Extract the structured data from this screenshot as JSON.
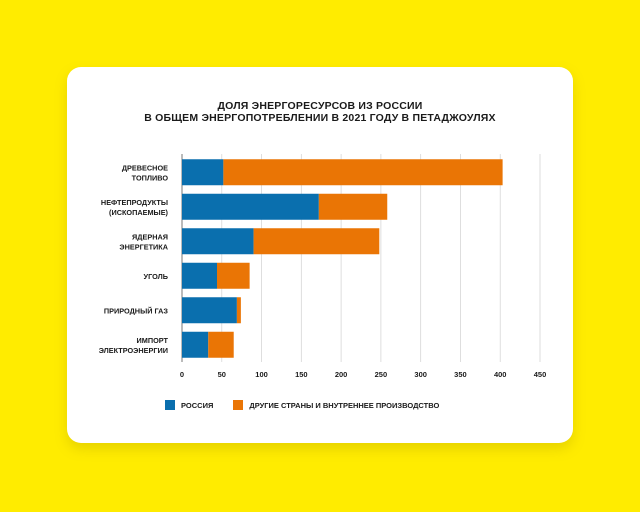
{
  "title_lines": [
    "ДОЛЯ ЭНЕРГОРЕСУРСОВ ИЗ РОССИИ",
    "В ОБЩЕМ ЭНЕРГОПОТРЕБЛЕНИИ В 2021 ГОДУ В ПЕТАДЖОУЛЯХ"
  ],
  "legend": {
    "russia_label": "РОССИЯ",
    "other_label": "ДРУГИЕ СТРАНЫ И ВНУТРЕННЕЕ ПРОИЗВОДСТВО"
  },
  "colors": {
    "russia": "#0A6FAE",
    "other": "#EA7505",
    "background": "#FFEC00",
    "grid": "#d6d6d6"
  },
  "chart_data": {
    "type": "bar",
    "orientation": "horizontal",
    "stacked": true,
    "title": "ДОЛЯ ЭНЕРГОРЕСУРСОВ ИЗ РОССИИ В ОБЩЕМ ЭНЕРГОПОТРЕБЛЕНИИ В 2021 ГОДУ В ПЕТАДЖОУЛЯХ",
    "categories": [
      [
        "ДРЕВЕСНОЕ",
        "ТОПЛИВО"
      ],
      [
        "НЕФТЕПРОДУКТЫ",
        "(ИСКОПАЕМЫЕ)"
      ],
      [
        "ЯДЕРНАЯ",
        "ЭНЕРГЕТИКА"
      ],
      [
        "УГОЛЬ"
      ],
      [
        "ПРИРОДНЫЙ ГАЗ"
      ],
      [
        "ИМПОРТ",
        "ЭЛЕКТРОЭНЕРГИИ"
      ]
    ],
    "series": [
      {
        "name": "РОССИЯ",
        "values": [
          52,
          172,
          90,
          44,
          69,
          33
        ]
      },
      {
        "name": "ДРУГИЕ СТРАНЫ И ВНУТРЕННЕЕ ПРОИЗВОДСТВО",
        "values": [
          351,
          86,
          158,
          41,
          5,
          32
        ]
      }
    ],
    "xlim": [
      0,
      450
    ],
    "xticks": [
      0,
      50,
      100,
      150,
      200,
      250,
      300,
      350,
      400,
      450
    ],
    "grid": "vertical",
    "legend_position": "bottom"
  }
}
